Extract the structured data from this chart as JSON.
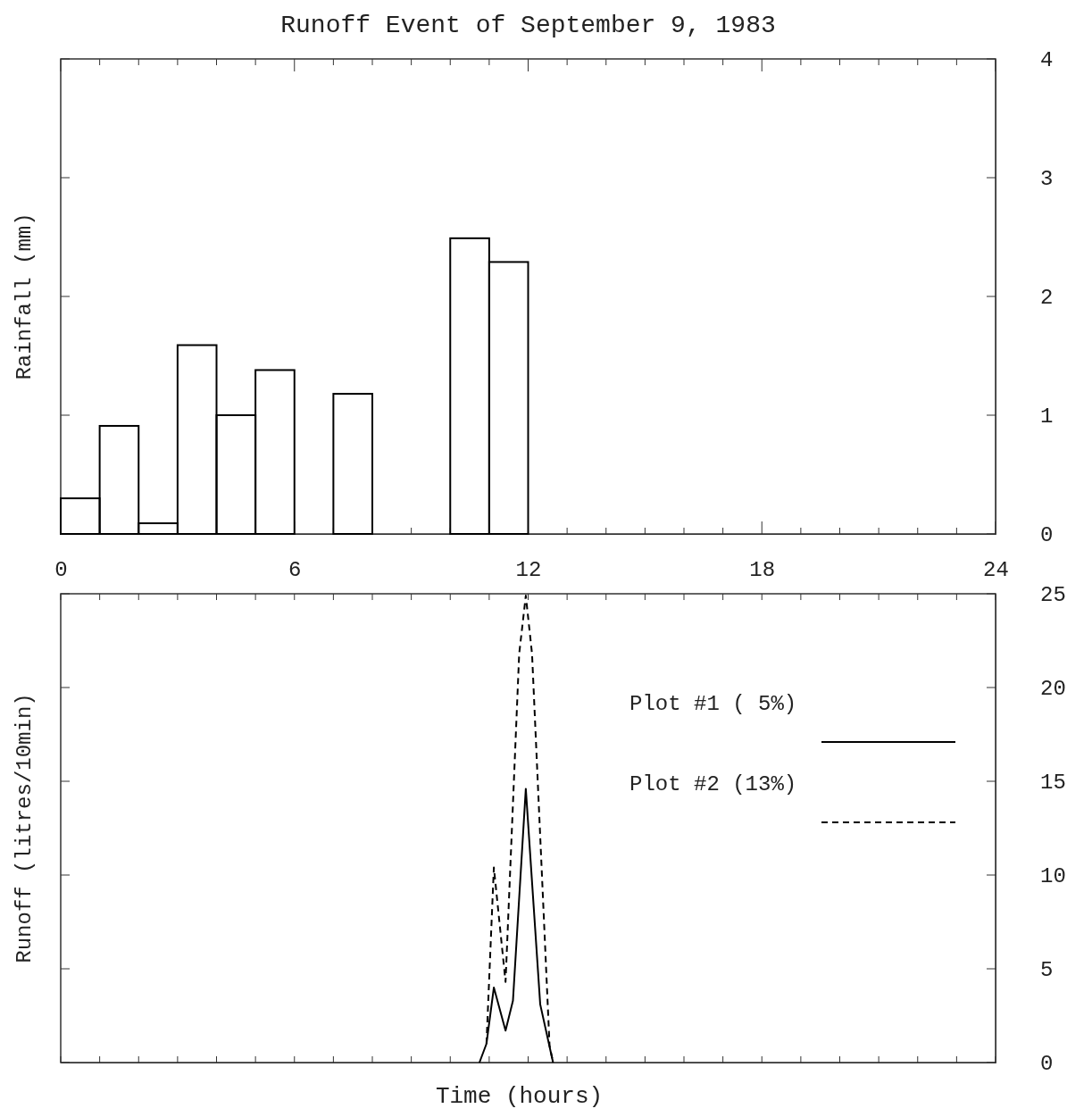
{
  "chart_data": [
    {
      "type": "histogram",
      "title": "Runoff Event of September 9, 1983",
      "ylabel": "Rainfall (mm)",
      "color": "#000000",
      "bins": [
        0,
        1,
        2,
        3,
        4,
        5,
        6,
        7,
        8,
        9,
        10,
        11,
        12
      ],
      "values": [
        0.3,
        0.91,
        0.09,
        1.59,
        1.0,
        1.38,
        0,
        1.18,
        0,
        0,
        2.49,
        2.29
      ],
      "xlim": [
        0,
        24
      ],
      "xticks": [
        0,
        {
          "value": 1,
          "label": null
        },
        {
          "value": 2,
          "label": null
        },
        {
          "value": 3,
          "label": null
        },
        {
          "value": 4,
          "label": null
        },
        {
          "value": 5,
          "label": null
        },
        6,
        {
          "value": 7,
          "label": null
        },
        {
          "value": 8,
          "label": null
        },
        {
          "value": 9,
          "label": null
        },
        {
          "value": 10,
          "label": null
        },
        {
          "value": 11,
          "label": null
        },
        12,
        {
          "value": 13,
          "label": null
        },
        {
          "value": 14,
          "label": null
        },
        {
          "value": 15,
          "label": null
        },
        {
          "value": 16,
          "label": null
        },
        {
          "value": 17,
          "label": null
        },
        18,
        {
          "value": 19,
          "label": null
        },
        {
          "value": 20,
          "label": null
        },
        {
          "value": 21,
          "label": null
        },
        {
          "value": 22,
          "label": null
        },
        {
          "value": 23,
          "label": null
        },
        24
      ],
      "ylim": [
        0,
        4
      ],
      "yticks": [
        0,
        1,
        2,
        3,
        4
      ],
      "grid": false
    },
    {
      "type": "line",
      "xlabel": "Time (hours)",
      "ylabel": "Runoff (litres/10min)",
      "legend": "top right",
      "tick_labels": "y",
      "grid": false,
      "xlim": [
        0,
        24
      ],
      "xticks": [
        {
          "value": 0,
          "label": null
        },
        {
          "value": 1,
          "label": null
        },
        {
          "value": 2,
          "label": null
        },
        {
          "value": 3,
          "label": null
        },
        {
          "value": 4,
          "label": null
        },
        {
          "value": 5,
          "label": null
        },
        {
          "value": 6,
          "label": null
        },
        {
          "value": 7,
          "label": null
        },
        {
          "value": 8,
          "label": null
        },
        {
          "value": 9,
          "label": null
        },
        {
          "value": 10,
          "label": null
        },
        {
          "value": 11,
          "label": null
        },
        {
          "value": 12,
          "label": null
        },
        {
          "value": 13,
          "label": null
        },
        {
          "value": 14,
          "label": null
        },
        {
          "value": 15,
          "label": null
        },
        {
          "value": 16,
          "label": null
        },
        {
          "value": 17,
          "label": null
        },
        {
          "value": 18,
          "label": null
        },
        {
          "value": 19,
          "label": null
        },
        {
          "value": 20,
          "label": null
        },
        {
          "value": 21,
          "label": null
        },
        {
          "value": 22,
          "label": null
        },
        {
          "value": 23,
          "label": null
        },
        {
          "value": 24,
          "label": null
        }
      ],
      "ylim": [
        0,
        25
      ],
      "yticks": [
        0,
        5,
        10,
        15,
        20,
        25
      ],
      "series": [
        {
          "name": "Plot #1 ( 5%)",
          "color": "#000000",
          "line_style": "solid",
          "x": [
            10.75,
            10.93,
            11.12,
            11.42,
            11.61,
            11.94,
            12.31,
            12.64
          ],
          "values": [
            0,
            1.0,
            4.0,
            1.7,
            3.3,
            14.6,
            3.1,
            0
          ]
        },
        {
          "name": "Plot #2 (13%)",
          "color": "#000000",
          "line_style": "dashed",
          "x": [
            10.93,
            11.12,
            11.42,
            11.77,
            11.94,
            12.1,
            12.55,
            12.64
          ],
          "values": [
            1.0,
            10.4,
            4.3,
            21.8,
            24.9,
            21.8,
            0.9,
            0
          ]
        }
      ]
    }
  ]
}
